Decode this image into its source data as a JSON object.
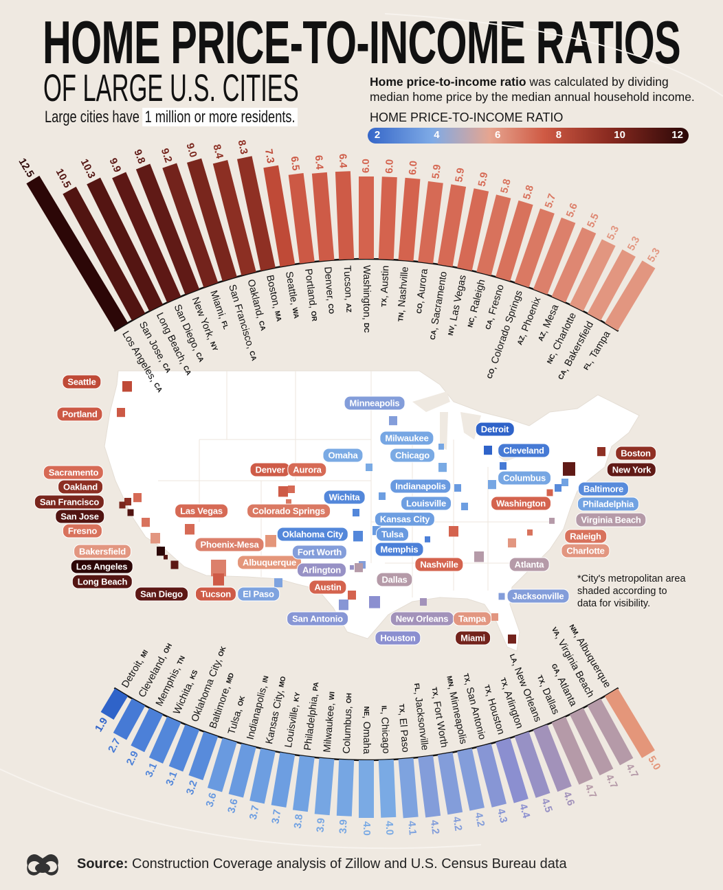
{
  "header": {
    "title": "HOME PRICE-TO-INCOME RATIOS",
    "subtitle": "OF LARGE U.S. CITIES",
    "note_prefix": "Large cities have",
    "note_highlight": "1 million or more residents.",
    "desc_bold": "Home price-to-income ratio",
    "desc_rest": " was calculated by dividing median home price by the median annual household income.",
    "legend_title": "HOME PRICE-TO-INCOME RATIO",
    "legend_ticks": [
      "2",
      "4",
      "6",
      "8",
      "10",
      "12"
    ]
  },
  "colors": {
    "scale": [
      "#2f63c9",
      "#7aaae4",
      "#a090b8",
      "#e4967a",
      "#d4634e",
      "#8f3024",
      "#2c0707"
    ],
    "background": "#efe9e1",
    "map_land": "#ffffff"
  },
  "chart_data": [
    {
      "type": "bar",
      "layout": "radial-arc",
      "title": "",
      "categories": [
        "Los Angeles",
        "San Jose",
        "Long Beach",
        "San Diego",
        "New York",
        "Miami",
        "San Francisco",
        "Oakland",
        "Boston",
        "Seattle",
        "Portland",
        "Denver",
        "Tucson",
        "Washington",
        "Austin",
        "Nashville",
        "Aurora",
        "Sacramento",
        "Las Vegas",
        "Raleigh",
        "Fresno",
        "Colorado Springs",
        "Phoenix",
        "Mesa",
        "Charlotte",
        "Bakersfield",
        "Tampa"
      ],
      "states": [
        "CA",
        "CA",
        "CA",
        "CA",
        "NY",
        "FL",
        "CA",
        "CA",
        "MA",
        "WA",
        "OR",
        "CO",
        "AZ",
        "DC",
        "TX",
        "TN",
        "CO",
        "CA",
        "NV",
        "NC",
        "CA",
        "CO",
        "AZ",
        "AZ",
        "NC",
        "CA",
        "FL"
      ],
      "values": [
        12.5,
        10.5,
        10.3,
        9.9,
        9.8,
        9.2,
        9.0,
        8.4,
        8.3,
        7.3,
        6.5,
        6.4,
        6.4,
        6.0,
        6.0,
        6.0,
        5.9,
        5.9,
        5.9,
        5.8,
        5.8,
        5.7,
        5.6,
        5.5,
        5.3,
        5.3,
        5.3
      ],
      "value_labels": [
        "12.5",
        "10.5",
        "10.3",
        "9.9",
        "9.8",
        "9.2",
        "9.0",
        "8.4",
        "8.3",
        "7.3",
        "6.5",
        "6.4",
        "6.4",
        "6.0",
        "6.0",
        "6.0",
        "5.9",
        "5.9",
        "5.9",
        "5.8",
        "5.8",
        "5.7",
        "5.6",
        "5.5",
        "5.3",
        "5.3",
        "5.3"
      ]
    },
    {
      "type": "bar",
      "layout": "radial-arc",
      "title": "",
      "categories": [
        "Detroit",
        "Cleveland",
        "Memphis",
        "Wichita",
        "Oklahoma City",
        "Baltimore",
        "Tulsa",
        "Indianapolis",
        "Kansas City",
        "Louisville",
        "Philadelphia",
        "Milwaukee",
        "Columbus",
        "Omaha",
        "Chicago",
        "El Paso",
        "Jacksonville",
        "Fort Worth",
        "Minneapolis",
        "San Antonio",
        "Houston",
        "Arlington",
        "New Orleans",
        "Dallas",
        "Atlanta",
        "Virginia Beach",
        "Albuquerque"
      ],
      "states": [
        "MI",
        "OH",
        "TN",
        "KS",
        "OK",
        "MD",
        "OK",
        "IN",
        "MO",
        "KY",
        "PA",
        "WI",
        "OH",
        "NE",
        "IL",
        "TX",
        "FL",
        "TX",
        "MN",
        "TX",
        "TX",
        "TX",
        "LA",
        "TX",
        "GA",
        "VA",
        "NM"
      ],
      "values": [
        1.9,
        2.7,
        2.9,
        3.1,
        3.1,
        3.2,
        3.6,
        3.6,
        3.7,
        3.7,
        3.8,
        3.9,
        3.9,
        4.0,
        4.0,
        4.1,
        4.2,
        4.2,
        4.2,
        4.3,
        4.4,
        4.5,
        4.6,
        4.7,
        4.7,
        4.7,
        5.0
      ],
      "value_labels": [
        "1.9",
        "2.7",
        "2.9",
        "3.1",
        "3.1",
        "3.2",
        "3.6",
        "3.6",
        "3.7",
        "3.7",
        "3.8",
        "3.9",
        "3.9",
        "4.0",
        "4.0",
        "4.1",
        "4.2",
        "4.2",
        "4.2",
        "4.3",
        "4.4",
        "4.5",
        "4.6",
        "4.7",
        "4.7",
        "4.7",
        "5.0"
      ]
    }
  ],
  "map": {
    "labels": [
      "Seattle",
      "Portland",
      "Sacramento",
      "Oakland",
      "San Francisco",
      "San Jose",
      "Fresno",
      "Bakersfield",
      "Los Angeles",
      "Long Beach",
      "San Diego",
      "Las Vegas",
      "Phoenix-Mesa",
      "Tucson",
      "El Paso",
      "Albuquerque",
      "Denver",
      "Aurora",
      "Colorado Springs",
      "Minneapolis",
      "Milwaukee",
      "Chicago",
      "Omaha",
      "Detroit",
      "Cleveland",
      "Columbus",
      "Indianapolis",
      "Louisville",
      "Wichita",
      "Kansas City",
      "Oklahoma City",
      "Tulsa",
      "Fort Worth",
      "Memphis",
      "Arlington",
      "Dallas",
      "Austin",
      "San Antonio",
      "Houston",
      "New Orleans",
      "Tampa",
      "Miami",
      "Jacksonville",
      "Atlanta",
      "Nashville",
      "Washington",
      "Baltimore",
      "Philadelphia",
      "Virginia Beach",
      "Raleigh",
      "Charlotte",
      "Boston",
      "New York"
    ],
    "footnote": "*City's metropolitan area shaded according to data for visibility."
  },
  "footer": {
    "source_label": "Source:",
    "source_text": " Construction Coverage analysis of Zillow and U.S. Census Bureau data"
  }
}
